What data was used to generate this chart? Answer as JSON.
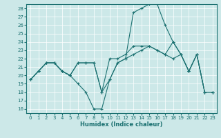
{
  "xlabel": "Humidex (Indice chaleur)",
  "bg_color": "#cce8e8",
  "line_color": "#1a7070",
  "xlim": [
    -0.5,
    23.5
  ],
  "ylim": [
    15.5,
    28.5
  ],
  "xticks": [
    0,
    1,
    2,
    3,
    4,
    5,
    6,
    7,
    8,
    9,
    10,
    11,
    12,
    13,
    14,
    15,
    16,
    17,
    18,
    19,
    20,
    21,
    22,
    23
  ],
  "yticks": [
    16,
    17,
    18,
    19,
    20,
    21,
    22,
    23,
    24,
    25,
    26,
    27,
    28
  ],
  "lines": [
    {
      "x": [
        0,
        1,
        2,
        3,
        4,
        5,
        6,
        7,
        8,
        9,
        10,
        11,
        12,
        13,
        14,
        15,
        16,
        17,
        18,
        19,
        20,
        21,
        22,
        23
      ],
      "y": [
        19.5,
        20.5,
        21.5,
        21.5,
        20.5,
        20.0,
        19.0,
        18.0,
        16.0,
        16.0,
        19.5,
        21.5,
        22.0,
        27.5,
        28.0,
        28.5,
        28.5,
        26.0,
        24.0,
        22.5,
        20.5,
        22.5,
        18.0,
        18.0
      ]
    },
    {
      "x": [
        0,
        1,
        2,
        3,
        4,
        5,
        6,
        7,
        8,
        9,
        10,
        11,
        12,
        13,
        14,
        15,
        16,
        17,
        18,
        19,
        20,
        21,
        22,
        23
      ],
      "y": [
        19.5,
        20.5,
        21.5,
        21.5,
        20.5,
        20.0,
        21.5,
        21.5,
        21.5,
        18.0,
        22.0,
        22.0,
        22.5,
        23.5,
        23.5,
        23.5,
        23.0,
        22.5,
        24.0,
        22.5,
        20.5,
        22.5,
        18.0,
        18.0
      ]
    },
    {
      "x": [
        0,
        1,
        2,
        3,
        4,
        5,
        6,
        7,
        8,
        9,
        10,
        11,
        12,
        13,
        14,
        15,
        16,
        17,
        18,
        19,
        20,
        21,
        22,
        23
      ],
      "y": [
        19.5,
        20.5,
        21.5,
        21.5,
        20.5,
        20.0,
        21.5,
        21.5,
        21.5,
        18.0,
        19.5,
        21.5,
        22.0,
        22.5,
        23.0,
        23.5,
        23.0,
        22.5,
        22.0,
        22.5,
        20.5,
        22.5,
        18.0,
        18.0
      ]
    }
  ],
  "figsize": [
    3.2,
    2.0
  ],
  "dpi": 100,
  "xlabel_fontsize": 6,
  "tick_fontsize": 5,
  "linewidth": 0.8,
  "markersize": 3
}
